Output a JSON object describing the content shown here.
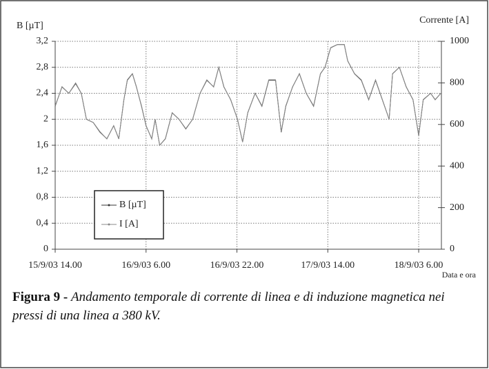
{
  "chart_data": {
    "type": "line",
    "ylabel": "B [µT]",
    "y2label": "Corrente [A]",
    "xlabel": "Data e ora",
    "caption_label": "Figura 9 -",
    "caption_text": "Andamento temporale di corrente di linea e di induzione magnetica nei pressi di una linea a 380 kV.",
    "xlim": [
      0,
      68
    ],
    "xticks": [
      {
        "value": 0,
        "label": "15/9/03 14.00"
      },
      {
        "value": 16,
        "label": "16/9/03 6.00"
      },
      {
        "value": 32,
        "label": "16/9/03 22.00"
      },
      {
        "value": 48,
        "label": "17/9/03 14.00"
      },
      {
        "value": 64,
        "label": "18/9/03 6.00"
      }
    ],
    "ylim": [
      0,
      3.2
    ],
    "yticks": [
      0,
      {
        "value": 0.4,
        "label": "0,4"
      },
      {
        "value": 0.8,
        "label": "0,8"
      },
      {
        "value": 1.2,
        "label": "1,2"
      },
      {
        "value": 1.6,
        "label": "1,6"
      },
      2,
      {
        "value": 2.4,
        "label": "2,4"
      },
      {
        "value": 2.8,
        "label": "2,8"
      },
      {
        "value": 3.2,
        "label": "3,2"
      }
    ],
    "y2lim": [
      0,
      1000
    ],
    "y2ticks": [
      0,
      200,
      400,
      600,
      800,
      1000
    ],
    "grid": true,
    "legend": "lower-left",
    "x": [
      0,
      1.2,
      2.4,
      3.6,
      4.6,
      5.5,
      6.7,
      7.9,
      9.1,
      10.3,
      11.2,
      12.1,
      12.7,
      13.6,
      14.3,
      15.2,
      16,
      17,
      17.6,
      18.4,
      19.4,
      20.6,
      21.8,
      23,
      24.2,
      25.5,
      26.7,
      27.9,
      28.8,
      29.7,
      30.9,
      32.1,
      33,
      33.9,
      35.2,
      36.4,
      37.6,
      38.8,
      39.8,
      40.6,
      41.8,
      43,
      44.2,
      45.5,
      46.7,
      47.5,
      48.5,
      49.7,
      50.9,
      51.5,
      52.7,
      53.9,
      55.2,
      56.4,
      57.6,
      58.8,
      59.4,
      60.6,
      61.8,
      63,
      64,
      64.8,
      66.1,
      66.9,
      67.9
    ],
    "series": [
      {
        "name": "B [µT]",
        "color": "#333333",
        "values": [
          2.2,
          2.5,
          2.4,
          2.55,
          2.4,
          2.0,
          1.95,
          1.8,
          1.7,
          1.9,
          1.7,
          2.3,
          2.6,
          2.7,
          2.5,
          2.2,
          1.9,
          1.7,
          2.0,
          1.6,
          1.7,
          2.1,
          2.0,
          1.85,
          2.0,
          2.4,
          2.6,
          2.5,
          2.8,
          2.5,
          2.3,
          2.0,
          1.65,
          2.1,
          2.4,
          2.2,
          2.6,
          2.6,
          1.8,
          2.2,
          2.5,
          2.7,
          2.4,
          2.2,
          2.7,
          2.8,
          3.1,
          3.15,
          3.15,
          2.9,
          2.7,
          2.6,
          2.3,
          2.6,
          2.3,
          2.0,
          2.7,
          2.8,
          2.5,
          2.3,
          1.75,
          2.3,
          2.4,
          2.3,
          2.4
        ]
      },
      {
        "name": "I [A]",
        "color": "#888888",
        "axis": "y2",
        "values": [
          690,
          780,
          750,
          800,
          750,
          625,
          610,
          565,
          530,
          595,
          530,
          720,
          815,
          845,
          780,
          690,
          595,
          530,
          625,
          500,
          530,
          655,
          625,
          580,
          625,
          750,
          815,
          780,
          875,
          780,
          720,
          625,
          515,
          655,
          750,
          690,
          815,
          815,
          565,
          690,
          780,
          845,
          750,
          690,
          845,
          875,
          970,
          985,
          985,
          905,
          845,
          815,
          720,
          815,
          720,
          625,
          845,
          875,
          780,
          720,
          545,
          720,
          750,
          720,
          750
        ]
      }
    ]
  }
}
